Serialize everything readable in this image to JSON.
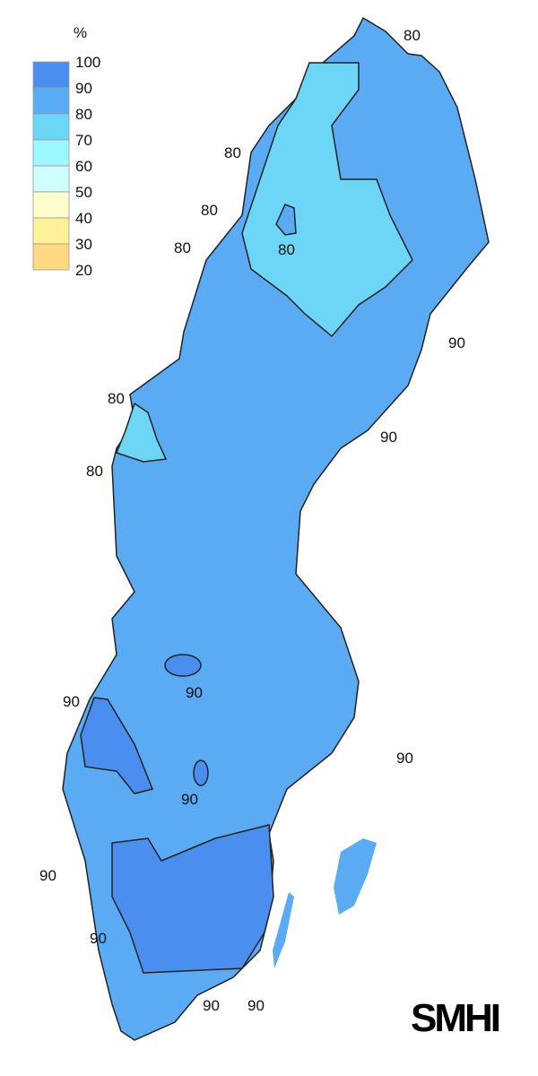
{
  "legend": {
    "unit": "%",
    "ticks": [
      "100",
      "90",
      "80",
      "70",
      "60",
      "50",
      "40",
      "30",
      "20"
    ],
    "bins": [
      {
        "range": "90-100",
        "color": "#4a8ff0"
      },
      {
        "range": "80-90",
        "color": "#5aabf4"
      },
      {
        "range": "70-80",
        "color": "#6dd6f6"
      },
      {
        "range": "60-70",
        "color": "#9cf8fc"
      },
      {
        "range": "50-60",
        "color": "#cefefe"
      },
      {
        "range": "40-50",
        "color": "#fffcce"
      },
      {
        "range": "30-40",
        "color": "#fff09a"
      },
      {
        "range": "20-30",
        "color": "#ffd882"
      }
    ]
  },
  "contour_labels": [
    "80",
    "80",
    "80",
    "80",
    "80",
    "90",
    "90",
    "80",
    "80",
    "90",
    "90",
    "90",
    "90",
    "90",
    "90",
    "90",
    "90"
  ],
  "logo": "SMHI"
}
